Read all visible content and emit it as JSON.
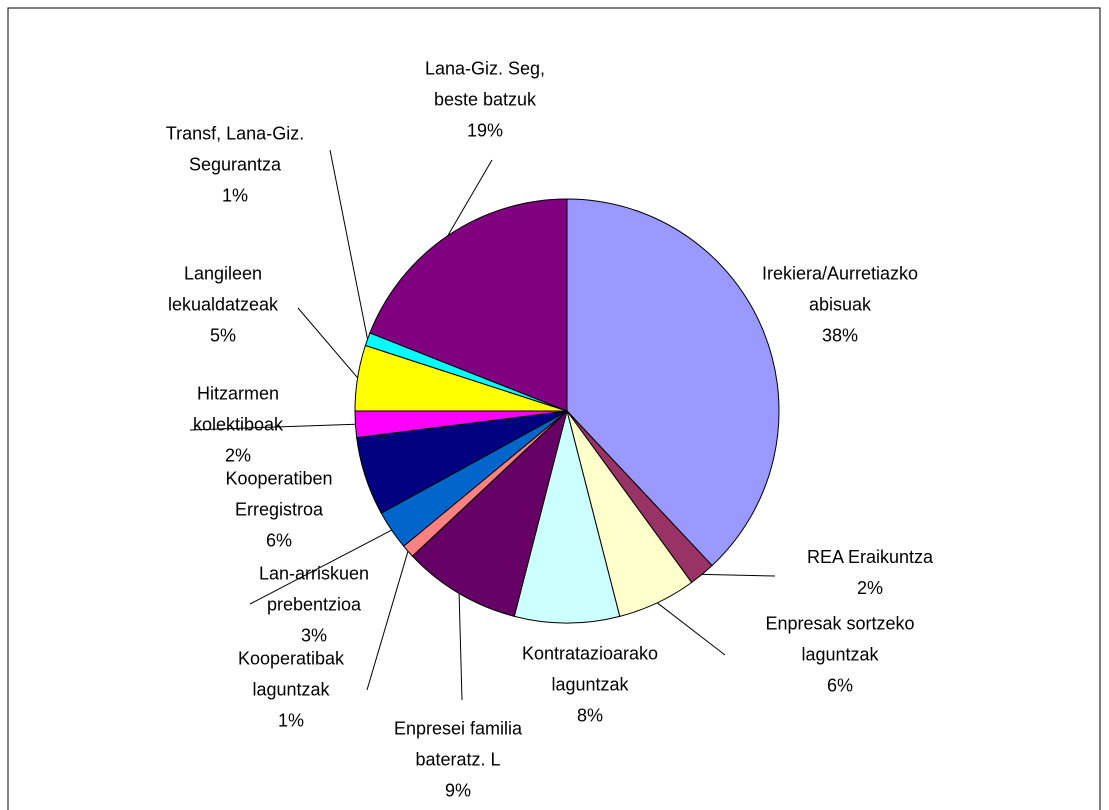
{
  "chart_data": {
    "type": "pie",
    "categories": [
      "Irekiera/Aurretiazko\nabisuak",
      "REA Eraikuntza",
      "Enpresak sortzeko\nlaguntzak",
      "Kontratazioarako\nlaguntzak",
      "Enpresei familia\nbateratz. L",
      "Kooperatibak\nlaguntzak",
      "Lan-arriskuen\nprebentzioa",
      "Kooperatiben\nErregistroa",
      "Hitzarmen\nkolektiboak",
      "Langileen\nlekualdatzeak",
      "Transf, Lana-Giz.\nSegurantza",
      "Lana-Giz. Seg,\nbeste batzuk"
    ],
    "values": [
      38,
      2,
      6,
      8,
      9,
      1,
      3,
      6,
      2,
      5,
      1,
      19
    ],
    "value_labels": [
      "38%",
      "2%",
      "6%",
      "8%",
      "9%",
      "1%",
      "3%",
      "6%",
      "2%",
      "5%",
      "1%",
      "19%"
    ],
    "colors": [
      "#9999ff",
      "#993366",
      "#ffffcc",
      "#ccffff",
      "#660066",
      "#ff8080",
      "#0066cc",
      "#000080",
      "#ff00ff",
      "#ffff00",
      "#00ffff",
      "#800080"
    ]
  }
}
